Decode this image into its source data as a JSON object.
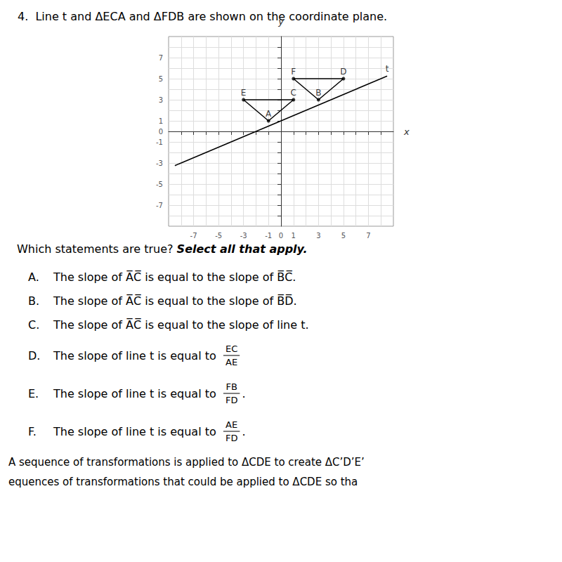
{
  "chart_data": {
    "type": "line",
    "title": "4.  Line t and ΔECA and ΔFDB are shown on the coordinate plane.",
    "xlabel": "x",
    "ylabel": "y",
    "xlim": [
      -9,
      9
    ],
    "ylim": [
      -9,
      9
    ],
    "xticks": [
      {
        "value": -8,
        "label": ""
      },
      -7,
      {
        "value": -6,
        "label": ""
      },
      -5,
      {
        "value": -4,
        "label": ""
      },
      -3,
      {
        "value": -2,
        "label": ""
      },
      -1,
      0,
      1,
      {
        "value": 2,
        "label": ""
      },
      3,
      {
        "value": 4,
        "label": ""
      },
      5,
      {
        "value": 6,
        "label": ""
      },
      7,
      {
        "value": 8,
        "label": ""
      }
    ],
    "yticks": [
      {
        "value": -8,
        "label": ""
      },
      -7,
      {
        "value": -6,
        "label": ""
      },
      -5,
      {
        "value": -4,
        "label": ""
      },
      -3,
      {
        "value": -2,
        "label": ""
      },
      -1,
      0,
      1,
      {
        "value": 2,
        "label": ""
      },
      3,
      {
        "value": 4,
        "label": ""
      },
      5,
      {
        "value": 6,
        "label": ""
      },
      7,
      {
        "value": 8,
        "label": ""
      }
    ],
    "grid": true,
    "series": [
      {
        "type": "line",
        "color": "#000000",
        "x": [
          -8.5,
          8.5
        ],
        "values": [
          -3.25,
          5.25
        ]
      },
      {
        "type": "line",
        "color": "#000000",
        "x": [
          -3,
          1,
          -1,
          -3
        ],
        "values": [
          3,
          3,
          1,
          3
        ]
      },
      {
        "type": "line",
        "color": "#000000",
        "x": [
          1,
          5,
          3,
          1
        ],
        "values": [
          5,
          5,
          3,
          5
        ]
      },
      {
        "type": "scatter",
        "color": "#000000",
        "x": [
          -3,
          1,
          -1,
          1,
          5,
          3
        ],
        "values": [
          3,
          3,
          1,
          5,
          5,
          3
        ]
      }
    ],
    "annotations": [
      {
        "text": "t",
        "x": 8.5,
        "y": 5.25
      },
      {
        "text": "E",
        "x": -3,
        "y": 3
      },
      {
        "text": "C",
        "x": 1,
        "y": 3
      },
      {
        "text": "A",
        "x": -1,
        "y": 1
      },
      {
        "text": "F",
        "x": 1,
        "y": 5
      },
      {
        "text": "D",
        "x": 5,
        "y": 5
      },
      {
        "text": "B",
        "x": 3,
        "y": 3
      },
      {
        "text": "Which statements are true?",
        "emphasis": "Select all that apply."
      },
      {
        "label": "A.",
        "text": "The slope of A̅C̅ is equal to the slope of B̅C̅."
      },
      {
        "label": "B.",
        "text": "The slope of A̅C̅ is equal to the slope of B̅D̅."
      },
      {
        "label": "C.",
        "text": "The slope of A̅C̅ is equal to the slope of line t."
      },
      {
        "label": "D.",
        "text": "The slope of line t is equal to",
        "numerator": "EC",
        "denominator": "AE"
      },
      {
        "label": "E.",
        "text": "The slope of line t is equal to",
        "numerator": "FB",
        "denominator": "FD",
        "suffix": "."
      },
      {
        "label": "F.",
        "text": "The slope of line t is equal to",
        "numerator": "AE",
        "denominator": "FD",
        "suffix": "."
      },
      {
        "text": "A sequence of transformations is applied to ΔCDE to create ΔC’D’E’"
      },
      {
        "text": "equences of transformations that could be applied to ΔCDE so tha"
      }
    ]
  }
}
